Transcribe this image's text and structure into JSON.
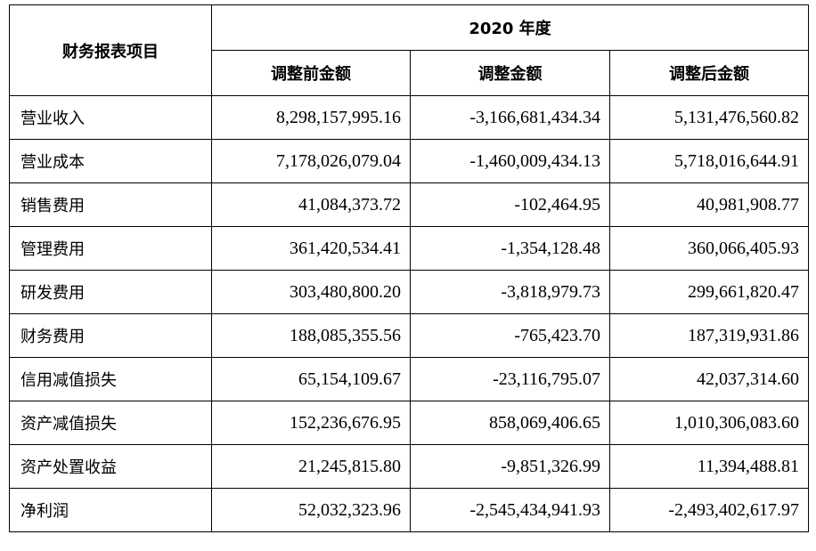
{
  "table": {
    "corner_header": "财务报表项目",
    "year_header": "2020 年度",
    "column_headers": [
      "调整前金额",
      "调整金额",
      "调整后金额"
    ],
    "rows": [
      {
        "label": "营业收入",
        "values": [
          "8,298,157,995.16",
          "-3,166,681,434.34",
          "5,131,476,560.82"
        ]
      },
      {
        "label": "营业成本",
        "values": [
          "7,178,026,079.04",
          "-1,460,009,434.13",
          "5,718,016,644.91"
        ]
      },
      {
        "label": "销售费用",
        "values": [
          "41,084,373.72",
          "-102,464.95",
          "40,981,908.77"
        ]
      },
      {
        "label": "管理费用",
        "values": [
          "361,420,534.41",
          "-1,354,128.48",
          "360,066,405.93"
        ]
      },
      {
        "label": "研发费用",
        "values": [
          "303,480,800.20",
          "-3,818,979.73",
          "299,661,820.47"
        ]
      },
      {
        "label": "财务费用",
        "values": [
          "188,085,355.56",
          "-765,423.70",
          "187,319,931.86"
        ]
      },
      {
        "label": "信用减值损失",
        "values": [
          "65,154,109.67",
          "-23,116,795.07",
          "42,037,314.60"
        ]
      },
      {
        "label": "资产减值损失",
        "values": [
          "152,236,676.95",
          "858,069,406.65",
          "1,010,306,083.60"
        ]
      },
      {
        "label": "资产处置收益",
        "values": [
          "21,245,815.80",
          "-9,851,326.99",
          "11,394,488.81"
        ]
      },
      {
        "label": "净利润",
        "values": [
          "52,032,323.96",
          "-2,545,434,941.93",
          "-2,493,402,617.97"
        ]
      }
    ]
  }
}
